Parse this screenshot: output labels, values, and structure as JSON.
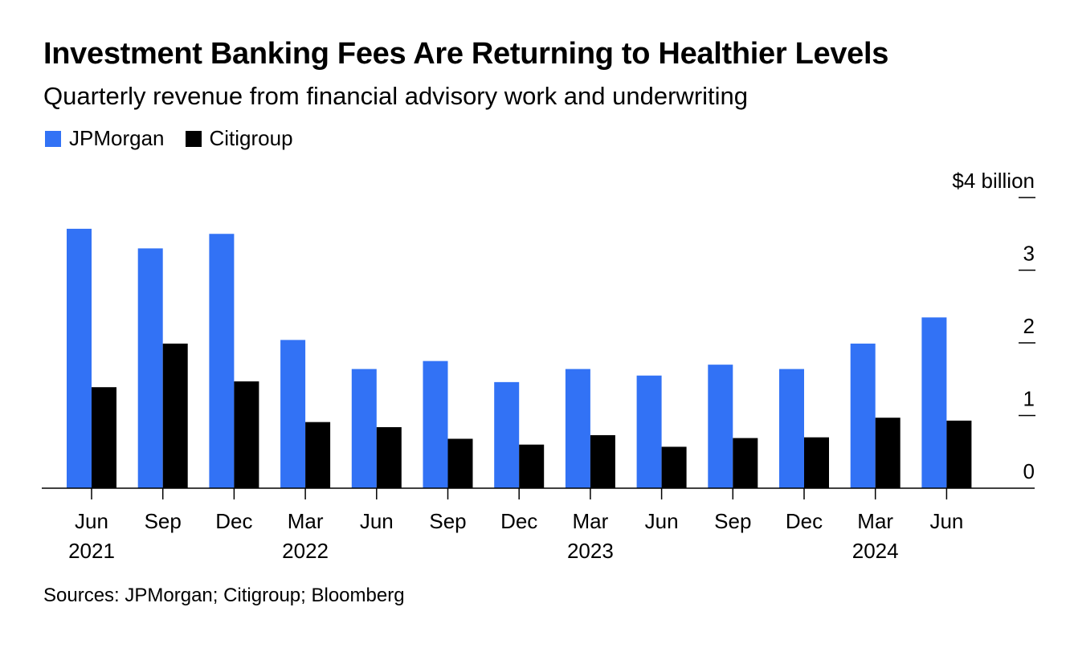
{
  "title": "Investment Banking Fees Are Returning to Healthier Levels",
  "subtitle": "Quarterly revenue from financial advisory work and underwriting",
  "source": "Sources: JPMorgan; Citigroup; Bloomberg",
  "chart_data": {
    "type": "bar",
    "title": "Investment Banking Fees Are Returning to Healthier Levels",
    "subtitle": "Quarterly revenue from financial advisory work and underwriting",
    "xlabel": "",
    "ylabel": "",
    "y_unit_label": "$4 billion",
    "ylim": [
      0,
      4
    ],
    "yticks": [
      0,
      1,
      2,
      3,
      4
    ],
    "ytick_labels": [
      "0",
      "1",
      "2",
      "3",
      "$4 billion"
    ],
    "grid": false,
    "legend_position": "top-left",
    "categories": [
      "Jun 2021",
      "Sep 2021",
      "Dec 2021",
      "Mar 2022",
      "Jun 2022",
      "Sep 2022",
      "Dec 2022",
      "Mar 2023",
      "Jun 2023",
      "Sep 2023",
      "Dec 2023",
      "Mar 2024",
      "Jun 2024"
    ],
    "tick_labels": [
      {
        "month": "Jun",
        "year": "2021"
      },
      {
        "month": "Sep",
        "year": ""
      },
      {
        "month": "Dec",
        "year": ""
      },
      {
        "month": "Mar",
        "year": "2022"
      },
      {
        "month": "Jun",
        "year": ""
      },
      {
        "month": "Sep",
        "year": ""
      },
      {
        "month": "Dec",
        "year": ""
      },
      {
        "month": "Mar",
        "year": "2023"
      },
      {
        "month": "Jun",
        "year": ""
      },
      {
        "month": "Sep",
        "year": ""
      },
      {
        "month": "Dec",
        "year": ""
      },
      {
        "month": "Mar",
        "year": "2024"
      },
      {
        "month": "Jun",
        "year": ""
      }
    ],
    "series": [
      {
        "name": "JPMorgan",
        "color": "#3272f5",
        "values": [
          3.57,
          3.3,
          3.5,
          2.04,
          1.64,
          1.75,
          1.46,
          1.64,
          1.55,
          1.7,
          1.64,
          1.99,
          2.35
        ]
      },
      {
        "name": "Citigroup",
        "color": "#000000",
        "values": [
          1.39,
          1.99,
          1.47,
          0.91,
          0.84,
          0.68,
          0.6,
          0.73,
          0.57,
          0.69,
          0.7,
          0.97,
          0.93
        ]
      }
    ]
  }
}
